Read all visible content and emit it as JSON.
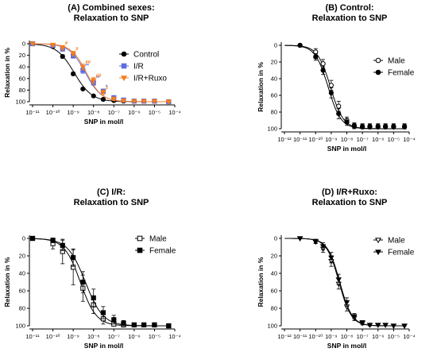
{
  "chart_data": [
    {
      "type": "line",
      "title": [
        "(A) Combined sexes:",
        "Relaxation to SNP"
      ],
      "xlabel": "SNP in mol/l",
      "ylabel": "Relaxation in %",
      "xscale": "log",
      "xlim": [
        1e-11,
        0.0001
      ],
      "ylim": [
        0,
        100
      ],
      "y_inverted": true,
      "x_tick_exponents": [
        -11,
        -10,
        -9,
        -8,
        -7,
        -6,
        -5,
        -4
      ],
      "x_tick_labels": [
        "10⁻¹¹",
        "10⁻¹⁰",
        "10⁻⁹",
        "10⁻⁸",
        "10⁻⁷",
        "10⁻⁶",
        "10⁻⁵",
        "10⁻⁴"
      ],
      "y_ticks": [
        0,
        20,
        40,
        60,
        80,
        100
      ],
      "legend_position": "top-right",
      "series": [
        {
          "name": "Control",
          "color": "#000000",
          "marker": "circle-filled",
          "x": [
            1e-11,
            1e-10,
            3e-10,
            1e-09,
            3e-09,
            1e-08,
            3e-08,
            1e-07,
            3e-07,
            1e-06,
            3e-06,
            1e-05,
            5e-05
          ],
          "y": [
            0,
            5,
            22,
            52,
            78,
            90,
            96,
            98,
            99,
            99,
            99,
            99,
            100
          ],
          "err": [
            0,
            2,
            3,
            3,
            2,
            2,
            1,
            1,
            1,
            0,
            0,
            0,
            0
          ],
          "fit_logEC50": -8.95,
          "fit_hill": 1.0
        },
        {
          "name": "I/R",
          "color": "#5b6ee1",
          "marker": "square-filled",
          "x": [
            1e-11,
            1e-10,
            3e-10,
            1e-09,
            3e-09,
            1e-08,
            3e-08,
            1e-07,
            3e-07,
            1e-06,
            3e-06,
            1e-05,
            5e-05
          ],
          "y": [
            0,
            3,
            9,
            21,
            46,
            67,
            82,
            93,
            97,
            99,
            99,
            99,
            100
          ],
          "err": [
            0,
            3,
            4,
            4,
            5,
            5,
            4,
            3,
            2,
            1,
            1,
            0,
            0
          ],
          "fit_logEC50": -8.4,
          "fit_hill": 1.1
        },
        {
          "name": "I/R+Ruxo",
          "color": "#f57c1f",
          "marker": "triangle-down-filled",
          "x": [
            1e-11,
            1e-10,
            3e-10,
            1e-09,
            3e-09,
            1e-08,
            3e-08,
            1e-07,
            3e-07,
            1e-06,
            3e-06,
            1e-05,
            5e-05
          ],
          "y": [
            0,
            2,
            7,
            17,
            40,
            63,
            84,
            95,
            98,
            99,
            99,
            99,
            100
          ],
          "err": [
            0,
            3,
            4,
            4,
            5,
            5,
            4,
            3,
            2,
            1,
            1,
            0,
            0
          ],
          "fit_logEC50": -8.35,
          "fit_hill": 1.15
        }
      ],
      "significance_markers": [
        {
          "series": "I/R+Ruxo",
          "x": 3e-10,
          "y": 7,
          "text": "#"
        },
        {
          "series": "I/R+Ruxo",
          "x": 1e-09,
          "y": 17,
          "text": "#"
        },
        {
          "series": "I/R",
          "x": 3e-09,
          "y": 46,
          "text": "**"
        },
        {
          "series": "I/R+Ruxo",
          "x": 3e-09,
          "y": 40,
          "text": "##"
        },
        {
          "series": "I/R",
          "x": 1e-08,
          "y": 67,
          "text": "**"
        },
        {
          "series": "I/R+Ruxo",
          "x": 1e-08,
          "y": 63,
          "text": "##"
        },
        {
          "series": "I/R",
          "x": 3e-08,
          "y": 82,
          "text": "*"
        },
        {
          "series": "I/R+Ruxo",
          "x": 3e-08,
          "y": 84,
          "text": "#"
        }
      ]
    },
    {
      "type": "line",
      "title": [
        "(B) Control:",
        "Relaxation to SNP"
      ],
      "xlabel": "SNP in mol/l",
      "ylabel": "Relaxation in %",
      "xscale": "log",
      "xlim": [
        1e-12,
        0.0001
      ],
      "ylim": [
        0,
        100
      ],
      "y_inverted": true,
      "x_tick_exponents": [
        -12,
        -11,
        -10,
        -9,
        -8,
        -7,
        -6,
        -5,
        -4
      ],
      "x_tick_labels": [
        "10⁻¹²",
        "10⁻¹¹",
        "10⁻¹⁰",
        "10⁻⁹",
        "10⁻⁸",
        "10⁻⁷",
        "10⁻⁶",
        "10⁻⁵",
        "10⁻⁴"
      ],
      "y_ticks": [
        0,
        20,
        40,
        60,
        80,
        100
      ],
      "legend_position": "top-right",
      "series": [
        {
          "name": "Male",
          "color": "#000000",
          "marker": "circle-open",
          "x": [
            1e-11,
            1e-10,
            3e-10,
            1e-09,
            3e-09,
            1e-08,
            3e-08,
            1e-07,
            3e-07,
            1e-06,
            3e-06,
            1e-05,
            5e-05
          ],
          "y": [
            0,
            8,
            22,
            48,
            73,
            90,
            96,
            97,
            97,
            97,
            97,
            97,
            97
          ],
          "err": [
            0,
            4,
            5,
            6,
            6,
            4,
            3,
            3,
            3,
            3,
            3,
            3,
            3
          ],
          "fit_logEC50": -9.05,
          "fit_hill": 1.05
        },
        {
          "name": "Female",
          "color": "#000000",
          "marker": "circle-filled",
          "x": [
            1e-11,
            1e-10,
            3e-10,
            1e-09,
            3e-09,
            1e-08,
            3e-08,
            1e-07,
            3e-07,
            1e-06,
            3e-06,
            1e-05,
            5e-05
          ],
          "y": [
            0,
            14,
            30,
            57,
            82,
            92,
            97,
            98,
            98,
            98,
            98,
            98,
            98
          ],
          "err": [
            0,
            4,
            5,
            6,
            6,
            4,
            3,
            3,
            3,
            3,
            3,
            3,
            3
          ],
          "fit_logEC50": -9.2,
          "fit_hill": 1.05
        }
      ]
    },
    {
      "type": "line",
      "title": [
        "(C) I/R:",
        "Relaxation to SNP"
      ],
      "xlabel": "SNP in mol/l",
      "ylabel": "Relaxation in %",
      "xscale": "log",
      "xlim": [
        1e-11,
        0.0001
      ],
      "ylim": [
        0,
        100
      ],
      "y_inverted": true,
      "x_tick_exponents": [
        -11,
        -10,
        -9,
        -8,
        -7,
        -6,
        -5,
        -4
      ],
      "x_tick_labels": [
        "10⁻¹¹",
        "10⁻¹⁰",
        "10⁻⁹",
        "10⁻⁸",
        "10⁻⁷",
        "10⁻⁶",
        "10⁻⁵",
        "10⁻⁴"
      ],
      "y_ticks": [
        0,
        20,
        40,
        60,
        80,
        100
      ],
      "legend_position": "top-right",
      "series": [
        {
          "name": "Male",
          "color": "#000000",
          "marker": "square-open",
          "x": [
            1e-11,
            1e-10,
            3e-10,
            1e-09,
            3e-09,
            1e-08,
            3e-08,
            1e-07,
            3e-07,
            1e-06,
            3e-06,
            1e-05,
            5e-05
          ],
          "y": [
            0,
            6,
            15,
            33,
            57,
            76,
            92,
            98,
            99,
            99,
            99,
            99,
            100
          ],
          "err": [
            0,
            6,
            14,
            20,
            15,
            10,
            6,
            3,
            2,
            1,
            1,
            1,
            0
          ],
          "fit_logEC50": -8.65,
          "fit_hill": 1.1
        },
        {
          "name": "Female",
          "color": "#000000",
          "marker": "square-filled",
          "x": [
            1e-11,
            1e-10,
            3e-10,
            1e-09,
            3e-09,
            1e-08,
            3e-08,
            1e-07,
            3e-07,
            1e-06,
            3e-06,
            1e-05,
            5e-05
          ],
          "y": [
            0,
            2,
            8,
            22,
            50,
            68,
            85,
            93,
            97,
            99,
            99,
            99,
            100
          ],
          "err": [
            0,
            3,
            6,
            10,
            12,
            10,
            7,
            5,
            3,
            2,
            1,
            1,
            0
          ],
          "fit_logEC50": -8.4,
          "fit_hill": 1.0
        }
      ]
    },
    {
      "type": "line",
      "title": [
        "(D) I/R+Ruxo:",
        "Relaxation to SNP"
      ],
      "xlabel": "SNP in mol/l",
      "ylabel": "Relaxation in %",
      "xscale": "log",
      "xlim": [
        1e-12,
        0.0001
      ],
      "ylim": [
        0,
        100
      ],
      "y_inverted": true,
      "x_tick_exponents": [
        -12,
        -11,
        -10,
        -9,
        -8,
        -7,
        -6,
        -5,
        -4
      ],
      "x_tick_labels": [
        "10⁻¹²",
        "10⁻¹¹",
        "10⁻¹⁰",
        "10⁻⁹",
        "10⁻⁸",
        "10⁻⁷",
        "10⁻⁶",
        "10⁻⁵",
        "10⁻⁴"
      ],
      "y_ticks": [
        0,
        20,
        40,
        60,
        80,
        100
      ],
      "legend_position": "top-right",
      "series": [
        {
          "name": "Male",
          "color": "#000000",
          "marker": "triangle-down-open",
          "x": [
            1e-11,
            1e-10,
            3e-10,
            1e-09,
            3e-09,
            1e-08,
            3e-08,
            1e-07,
            3e-07,
            1e-06,
            3e-06,
            1e-05,
            5e-05
          ],
          "y": [
            0,
            4,
            12,
            26,
            52,
            78,
            91,
            97,
            99,
            99,
            99,
            100,
            100
          ],
          "err": [
            0,
            2,
            4,
            6,
            6,
            5,
            3,
            2,
            1,
            1,
            0,
            0,
            0
          ],
          "fit_logEC50": -8.5,
          "fit_hill": 1.1
        },
        {
          "name": "Female",
          "color": "#000000",
          "marker": "triangle-down-filled",
          "x": [
            1e-11,
            1e-10,
            3e-10,
            1e-09,
            3e-09,
            1e-08,
            3e-08,
            1e-07,
            3e-07,
            1e-06,
            3e-06,
            1e-05,
            5e-05
          ],
          "y": [
            0,
            3,
            9,
            22,
            47,
            73,
            89,
            96,
            99,
            99,
            99,
            100,
            100
          ],
          "err": [
            0,
            2,
            4,
            6,
            6,
            5,
            3,
            2,
            1,
            1,
            0,
            0,
            0
          ],
          "fit_logEC50": -8.45,
          "fit_hill": 1.1
        }
      ]
    }
  ]
}
